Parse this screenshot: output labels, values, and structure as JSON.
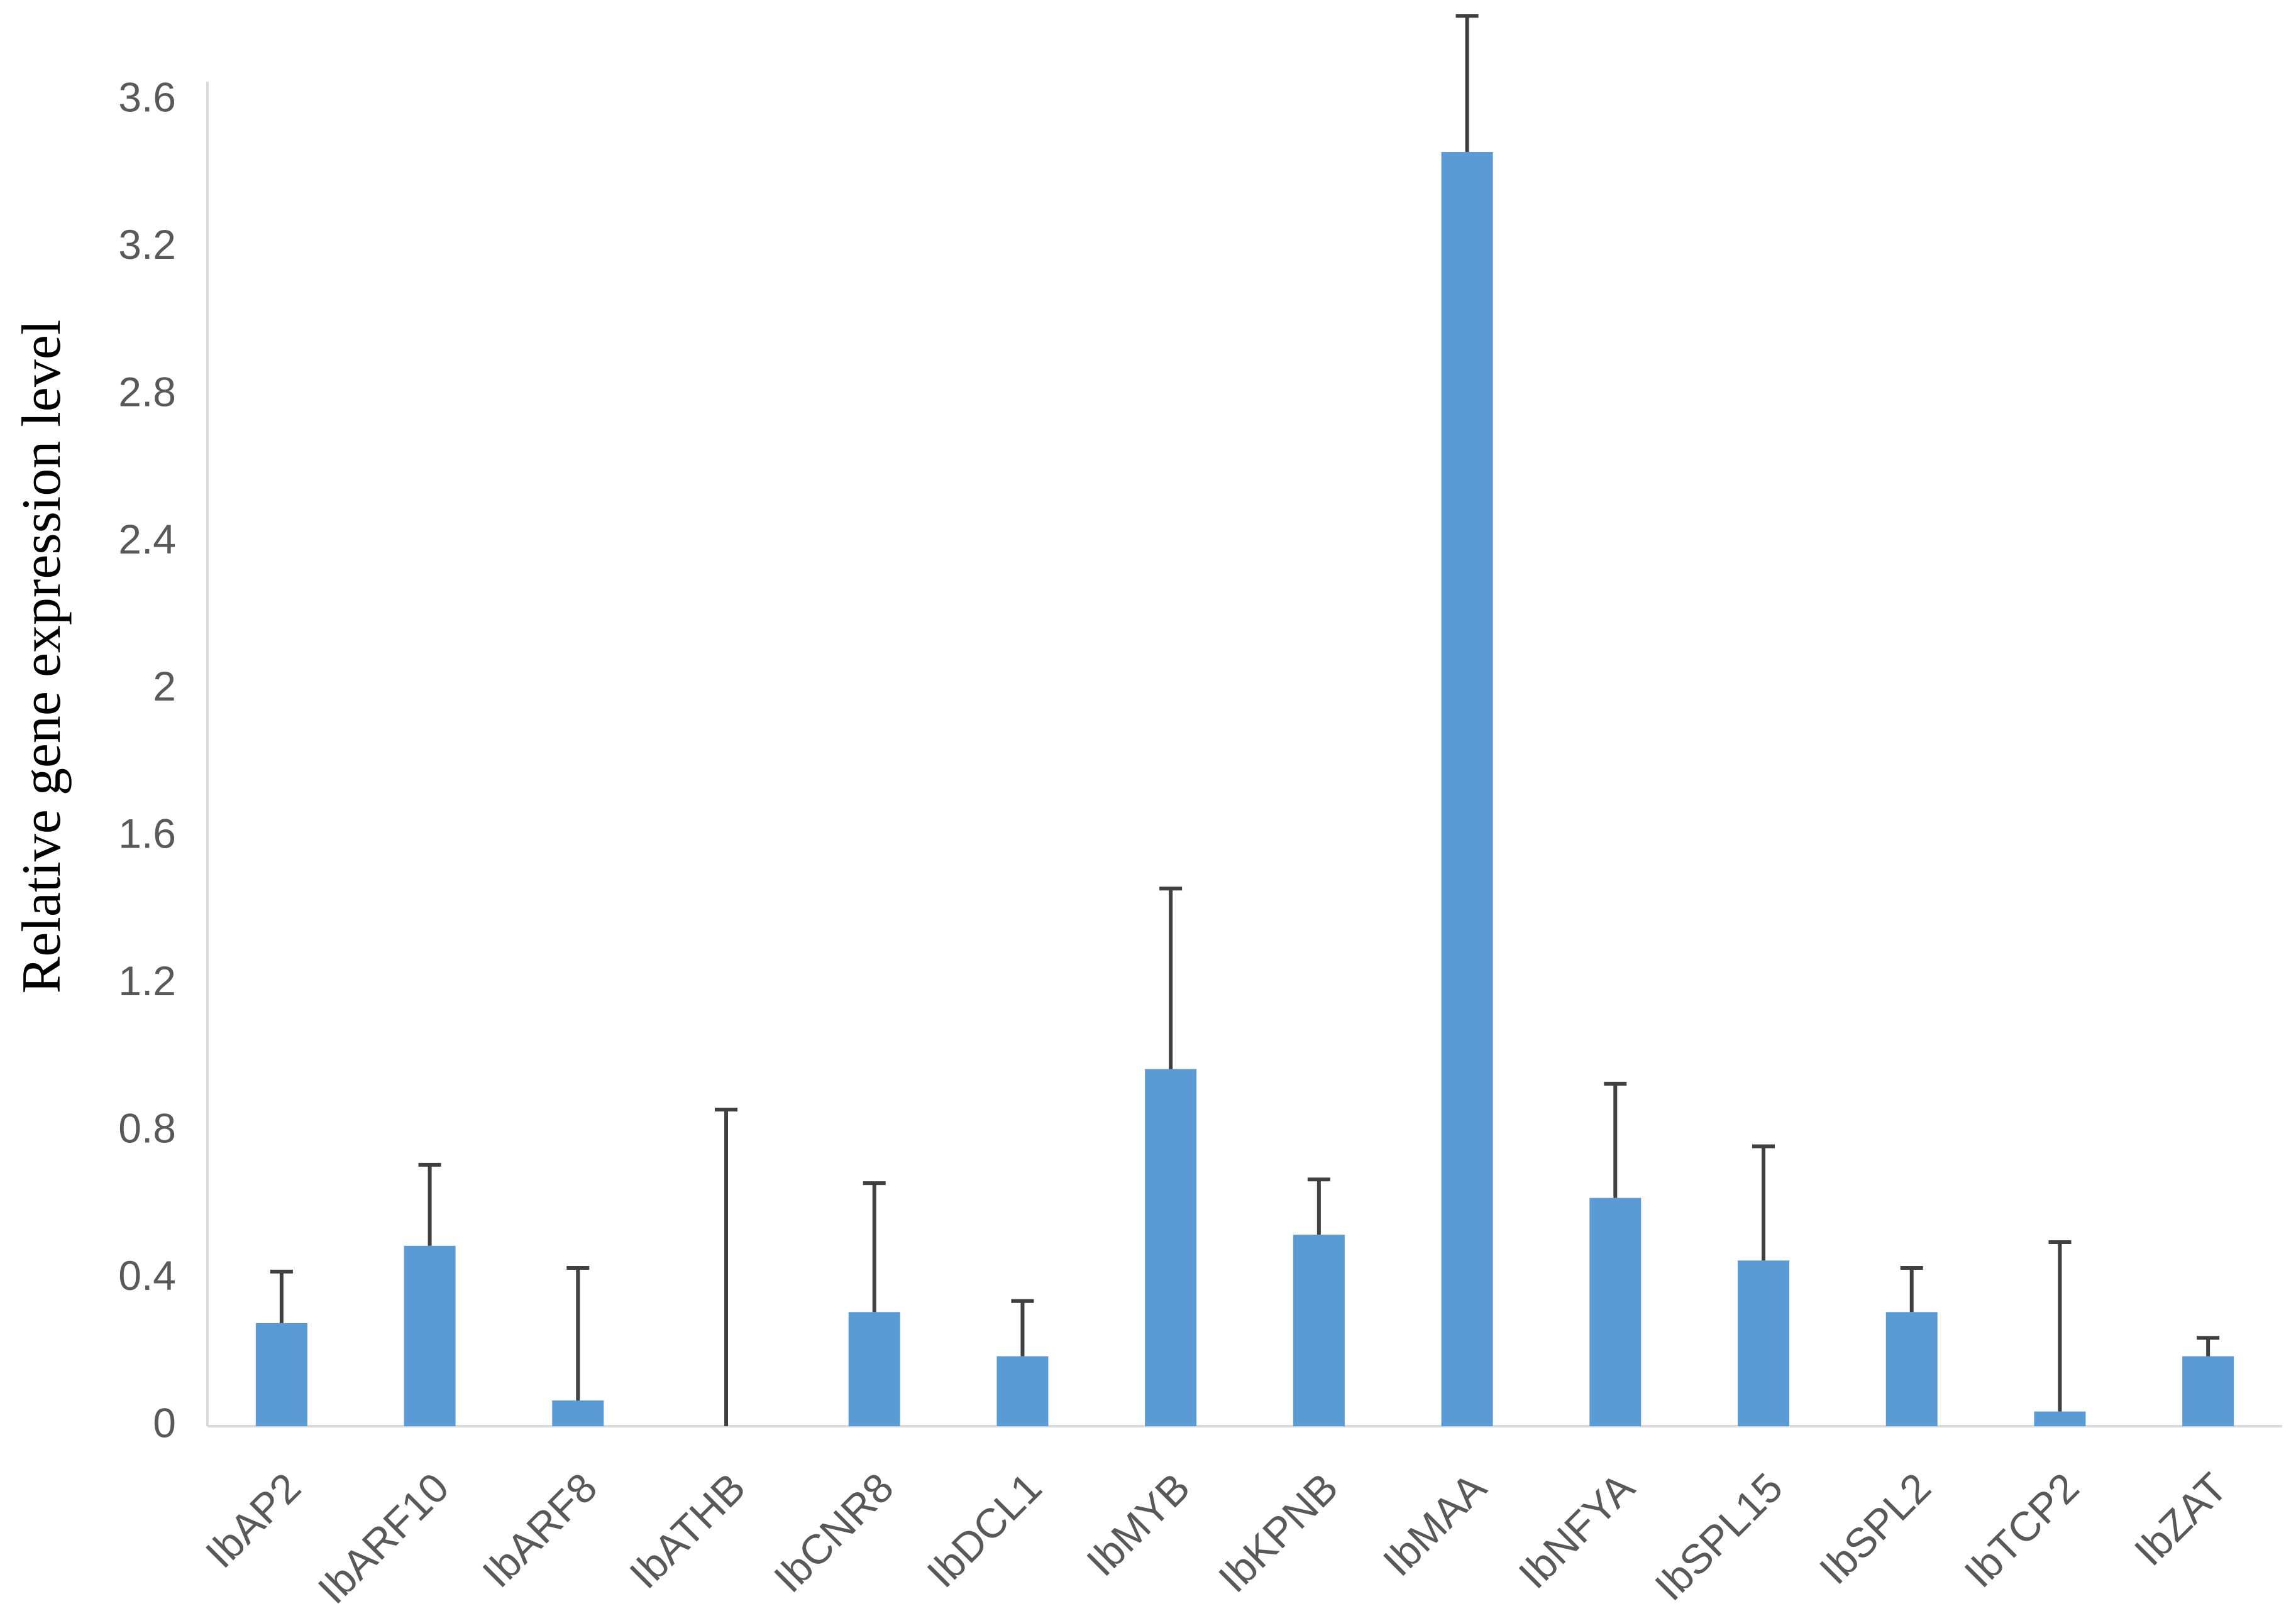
{
  "chart_data": {
    "type": "bar",
    "title": "",
    "xlabel": "",
    "ylabel": "Relative gene expression level",
    "ylim": [
      0,
      3.6
    ],
    "yticks": [
      "0",
      "0.4",
      "0.8",
      "1.2",
      "1.6",
      "2",
      "2.4",
      "2.8",
      "3.2",
      "3.6"
    ],
    "grid": false,
    "legend": "none",
    "bar_color": "#5B9BD5",
    "error_bar_color": "#404040",
    "categories": [
      "IbAP2",
      "IbARF10",
      "IbARF8",
      "IbATHB",
      "IbCNR8",
      "IbDCL1",
      "IbMYB",
      "IbKPNB",
      "IbMAA",
      "IbNFYA",
      "IbSPL15",
      "IbSPL2",
      "IbTCP2",
      "IbZAT"
    ],
    "values": [
      0.28,
      0.49,
      0.07,
      0.0,
      0.31,
      0.19,
      0.97,
      0.52,
      3.46,
      0.62,
      0.45,
      0.31,
      0.04,
      0.19
    ],
    "errors": [
      0.14,
      0.22,
      0.36,
      0.86,
      0.35,
      0.15,
      0.49,
      0.15,
      0.37,
      0.31,
      0.31,
      0.12,
      0.46,
      0.05
    ]
  }
}
